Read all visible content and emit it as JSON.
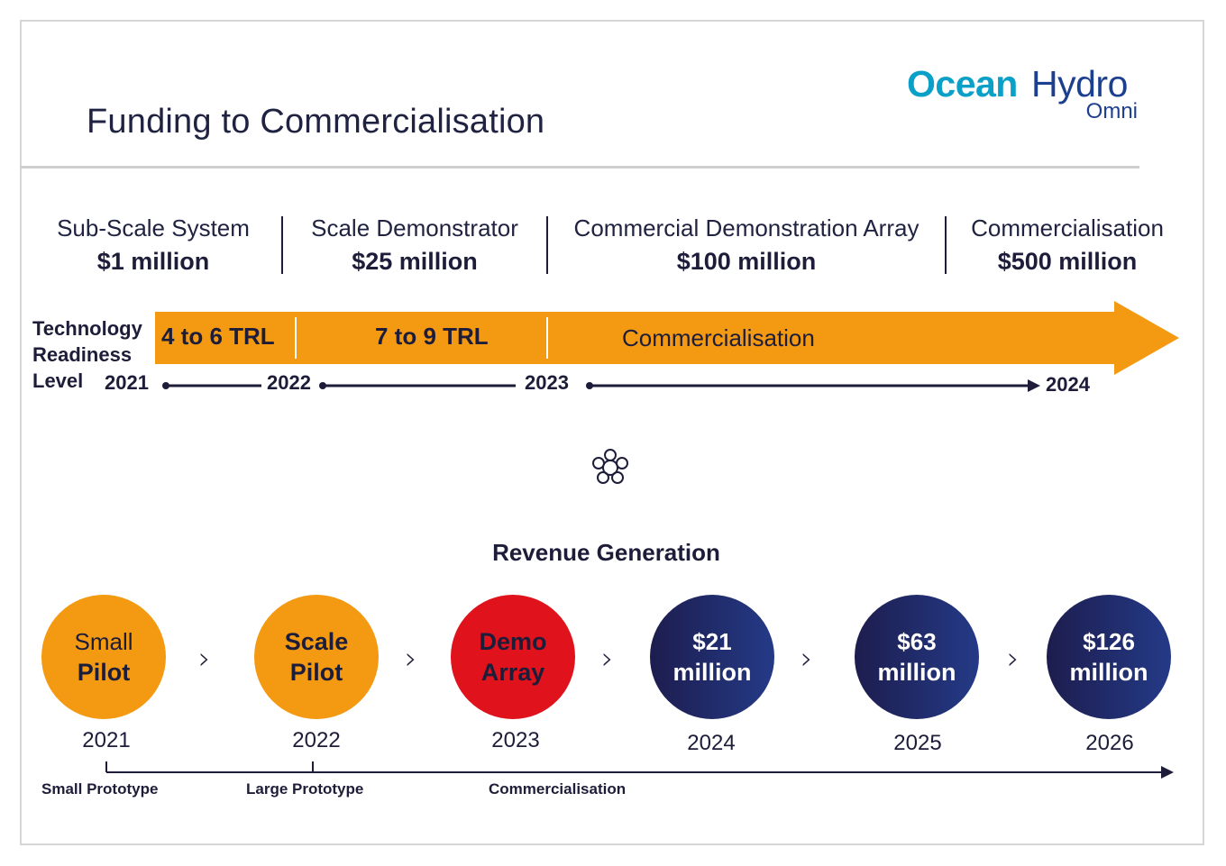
{
  "title": "Funding to Commercialisation",
  "logo": {
    "ocean": "Ocean",
    "hydro": "Hydro",
    "omni": "Omni"
  },
  "colors": {
    "orange": "#f39a12",
    "red": "#e0121c",
    "navy": "#1d1d4e",
    "logo_cyan": "#0aa0c8",
    "logo_blue": "#1c3f8f"
  },
  "stages": [
    {
      "name": "Sub-Scale System",
      "amount": "$1 million"
    },
    {
      "name": "Scale Demonstrator",
      "amount": "$25 million"
    },
    {
      "name": "Commercial Demonstration Array",
      "amount": "$100 million"
    },
    {
      "name": "Commercialisation",
      "amount": "$500 million"
    }
  ],
  "trl": {
    "label_lines": [
      "Technology",
      "Readiness",
      "Level"
    ],
    "segments": [
      "4 to 6 TRL",
      "7 to 9 TRL",
      "Commercialisation"
    ],
    "years": [
      "2021",
      "2022",
      "2023",
      "2024"
    ]
  },
  "center_icon": "knot-flower-icon",
  "revenue": {
    "title": "Revenue Generation",
    "circles": [
      {
        "line1": "Small",
        "line2": "Pilot",
        "year": "2021",
        "color": "orange"
      },
      {
        "line1": "Scale",
        "line2": "Pilot",
        "year": "2022",
        "color": "orange"
      },
      {
        "line1": "Demo",
        "line2": "Array",
        "year": "2023",
        "color": "red"
      },
      {
        "line1": "$21",
        "line2": "million",
        "year": "2024",
        "color": "navy"
      },
      {
        "line1": "$63",
        "line2": "million",
        "year": "2025",
        "color": "navy"
      },
      {
        "line1": "$126",
        "line2": "million",
        "year": "2026",
        "color": "navy"
      }
    ],
    "chevron": "›",
    "bottom_labels": [
      "Small Prototype",
      "Large Prototype",
      "Commercialisation"
    ]
  }
}
